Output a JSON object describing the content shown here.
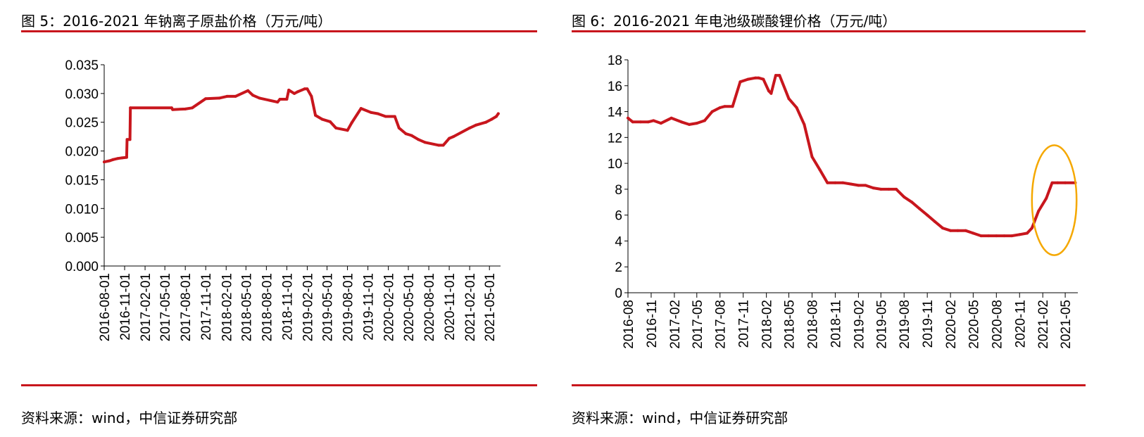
{
  "figures": [
    {
      "title": "图 5：2016-2021 年钠离子原盐价格（万元/吨）",
      "source": "资料来源：wind，中信证券研究部"
    },
    {
      "title": "图 6：2016-2021 年电池级碳酸锂价格（万元/吨）",
      "source": "资料来源：wind，中信证券研究部"
    }
  ],
  "colors": {
    "accent_red": "#c8161d",
    "highlight_orange": "#f5a800"
  },
  "chart_data": [
    {
      "type": "line",
      "title": "图 5：2016-2021 年钠离子原盐价格（万元/吨）",
      "xlabel": "",
      "ylabel": "",
      "x_tick_labels": [
        "2016-08-01",
        "2016-11-01",
        "2017-02-01",
        "2017-05-01",
        "2017-08-01",
        "2017-11-01",
        "2018-02-01",
        "2018-05-01",
        "2018-08-01",
        "2018-11-01",
        "2019-02-01",
        "2019-05-01",
        "2019-08-01",
        "2019-11-01",
        "2020-02-01",
        "2020-05-01",
        "2020-08-01",
        "2020-11-01",
        "2021-02-01",
        "2021-05-01"
      ],
      "y_tick_labels": [
        "0.000",
        "0.005",
        "0.010",
        "0.015",
        "0.020",
        "0.025",
        "0.030",
        "0.035"
      ],
      "ylim": [
        0,
        0.035
      ],
      "x_domain": [
        "2016-08-01",
        "2021-06-20"
      ],
      "grid": false,
      "series": [
        {
          "color": "#c8161d",
          "x": [
            "2016-08-01",
            "2016-08-25",
            "2016-09-10",
            "2016-10-01",
            "2016-10-20",
            "2016-11-10",
            "2016-11-12",
            "2016-11-25",
            "2016-11-27",
            "2017-06-01",
            "2017-06-05",
            "2017-08-01",
            "2017-09-01",
            "2017-11-01",
            "2018-01-01",
            "2018-02-05",
            "2018-03-15",
            "2018-05-10",
            "2018-06-01",
            "2018-07-01",
            "2018-09-20",
            "2018-10-01",
            "2018-11-01",
            "2018-11-10",
            "2018-12-05",
            "2018-12-20",
            "2019-01-20",
            "2019-02-01",
            "2019-02-20",
            "2019-03-10",
            "2019-04-10",
            "2019-05-15",
            "2019-06-10",
            "2019-08-01",
            "2019-08-20",
            "2019-10-01",
            "2019-11-15",
            "2019-12-15",
            "2020-01-20",
            "2020-03-01",
            "2020-03-20",
            "2020-04-20",
            "2020-05-15",
            "2020-06-15",
            "2020-07-15",
            "2020-09-15",
            "2020-10-05",
            "2020-11-01",
            "2020-11-20",
            "2021-02-01",
            "2021-03-01",
            "2021-04-15",
            "2021-05-10",
            "2021-06-01",
            "2021-06-10"
          ],
          "values": [
            0.0181,
            0.0183,
            0.0185,
            0.0187,
            0.0188,
            0.0189,
            0.022,
            0.022,
            0.0275,
            0.0275,
            0.0272,
            0.0273,
            0.0275,
            0.0291,
            0.0292,
            0.0295,
            0.0295,
            0.0305,
            0.0297,
            0.0292,
            0.0285,
            0.029,
            0.029,
            0.0306,
            0.03,
            0.0303,
            0.0308,
            0.0308,
            0.0295,
            0.0262,
            0.0255,
            0.0251,
            0.024,
            0.0236,
            0.0249,
            0.0274,
            0.0267,
            0.0265,
            0.026,
            0.026,
            0.024,
            0.023,
            0.0227,
            0.022,
            0.0215,
            0.021,
            0.021,
            0.0222,
            0.0225,
            0.024,
            0.0245,
            0.025,
            0.0255,
            0.026,
            0.0265
          ]
        }
      ]
    },
    {
      "type": "line",
      "title": "图 6：2016-2021 年电池级碳酸锂价格（万元/吨）",
      "xlabel": "",
      "ylabel": "",
      "x_tick_labels": [
        "2016-08",
        "2016-11",
        "2017-02",
        "2017-05",
        "2017-08",
        "2017-11",
        "2018-02",
        "2018-05",
        "2018-08",
        "2018-11",
        "2019-02",
        "2019-05",
        "2019-08",
        "2019-11",
        "2020-02",
        "2020-05",
        "2020-08",
        "2020-11",
        "2021-02",
        "2021-05"
      ],
      "y_tick_labels": [
        "0",
        "2",
        "4",
        "6",
        "8",
        "10",
        "12",
        "14",
        "16",
        "18"
      ],
      "ylim": [
        0,
        18
      ],
      "x_domain": [
        "2016-08-01",
        "2021-06-20"
      ],
      "grid": false,
      "annotation": {
        "shape": "ellipse",
        "color": "#f5a800",
        "x_range": [
          "2020-12-20",
          "2021-06-15"
        ],
        "y_range": [
          2.9,
          11.4
        ]
      },
      "series": [
        {
          "color": "#c8161d",
          "x": [
            "2016-08-01",
            "2016-08-20",
            "2016-09-20",
            "2016-10-20",
            "2016-11-10",
            "2016-12-10",
            "2017-01-20",
            "2017-03-01",
            "2017-04-01",
            "2017-05-01",
            "2017-06-01",
            "2017-07-01",
            "2017-08-01",
            "2017-08-20",
            "2017-09-20",
            "2017-10-20",
            "2017-11-20",
            "2017-12-20",
            "2018-01-01",
            "2018-01-20",
            "2018-02-10",
            "2018-02-20",
            "2018-03-10",
            "2018-03-25",
            "2018-05-01",
            "2018-06-01",
            "2018-07-01",
            "2018-08-01",
            "2018-09-01",
            "2018-10-01",
            "2018-11-01",
            "2018-12-01",
            "2019-01-01",
            "2019-02-01",
            "2019-03-01",
            "2019-04-01",
            "2019-05-01",
            "2019-06-01",
            "2019-07-01",
            "2019-08-01",
            "2019-09-01",
            "2019-10-01",
            "2019-11-01",
            "2019-12-01",
            "2020-01-01",
            "2020-02-01",
            "2020-03-01",
            "2020-04-01",
            "2020-05-01",
            "2020-06-01",
            "2020-07-01",
            "2020-08-01",
            "2020-09-01",
            "2020-10-01",
            "2020-11-01",
            "2020-12-01",
            "2020-12-20",
            "2021-01-15",
            "2021-02-15",
            "2021-03-10",
            "2021-04-01",
            "2021-05-01",
            "2021-06-10"
          ],
          "values": [
            13.5,
            13.2,
            13.2,
            13.2,
            13.3,
            13.1,
            13.5,
            13.2,
            13.0,
            13.1,
            13.3,
            14.0,
            14.3,
            14.4,
            14.4,
            16.3,
            16.5,
            16.6,
            16.6,
            16.5,
            15.6,
            15.4,
            16.8,
            16.8,
            15.0,
            14.3,
            13.0,
            10.5,
            9.5,
            8.5,
            8.5,
            8.5,
            8.4,
            8.3,
            8.3,
            8.1,
            8.0,
            8.0,
            8.0,
            7.4,
            7.0,
            6.5,
            6.0,
            5.5,
            5.0,
            4.8,
            4.8,
            4.8,
            4.6,
            4.4,
            4.4,
            4.4,
            4.4,
            4.4,
            4.5,
            4.6,
            5.0,
            6.3,
            7.3,
            8.5,
            8.5,
            8.5,
            8.5
          ]
        }
      ]
    }
  ]
}
